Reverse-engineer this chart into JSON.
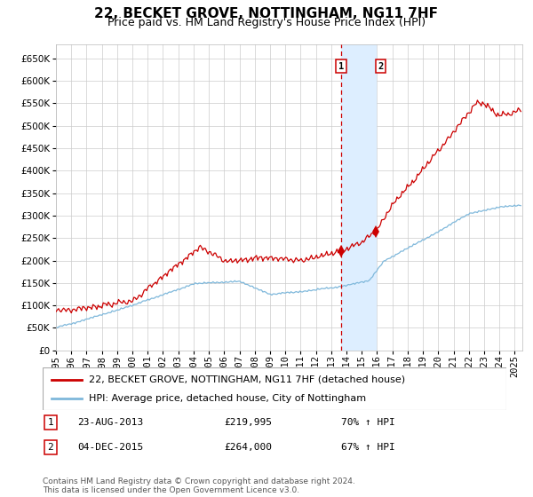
{
  "title": "22, BECKET GROVE, NOTTINGHAM, NG11 7HF",
  "subtitle": "Price paid vs. HM Land Registry's House Price Index (HPI)",
  "legend_line1": "22, BECKET GROVE, NOTTINGHAM, NG11 7HF (detached house)",
  "legend_line2": "HPI: Average price, detached house, City of Nottingham",
  "sale1_date": "23-AUG-2013",
  "sale1_price": 219995,
  "sale1_hpi_pct": "70%",
  "sale1_year": 2013.64,
  "sale2_date": "04-DEC-2015",
  "sale2_price": 264000,
  "sale2_hpi_pct": "67%",
  "sale2_year": 2015.92,
  "hpi_color": "#7fb8db",
  "sale_color": "#cc0000",
  "shade_color": "#ddeeff",
  "vline_color": "#cc0000",
  "footnote": "Contains HM Land Registry data © Crown copyright and database right 2024.\nThis data is licensed under the Open Government Licence v3.0.",
  "ylim": [
    0,
    680000
  ],
  "xlim_start": 1995.0,
  "xlim_end": 2025.5,
  "yticks": [
    0,
    50000,
    100000,
    150000,
    200000,
    250000,
    300000,
    350000,
    400000,
    450000,
    500000,
    550000,
    600000,
    650000
  ],
  "xtick_years": [
    1995,
    1996,
    1997,
    1998,
    1999,
    2000,
    2001,
    2002,
    2003,
    2004,
    2005,
    2006,
    2007,
    2008,
    2009,
    2010,
    2011,
    2012,
    2013,
    2014,
    2015,
    2016,
    2017,
    2018,
    2019,
    2020,
    2021,
    2022,
    2023,
    2024,
    2025
  ],
  "background_color": "#ffffff",
  "grid_color": "#cccccc",
  "title_fontsize": 11,
  "subtitle_fontsize": 9,
  "axis_fontsize": 7.5,
  "legend_fontsize": 8,
  "footnote_fontsize": 6.5,
  "table_fontsize": 8
}
